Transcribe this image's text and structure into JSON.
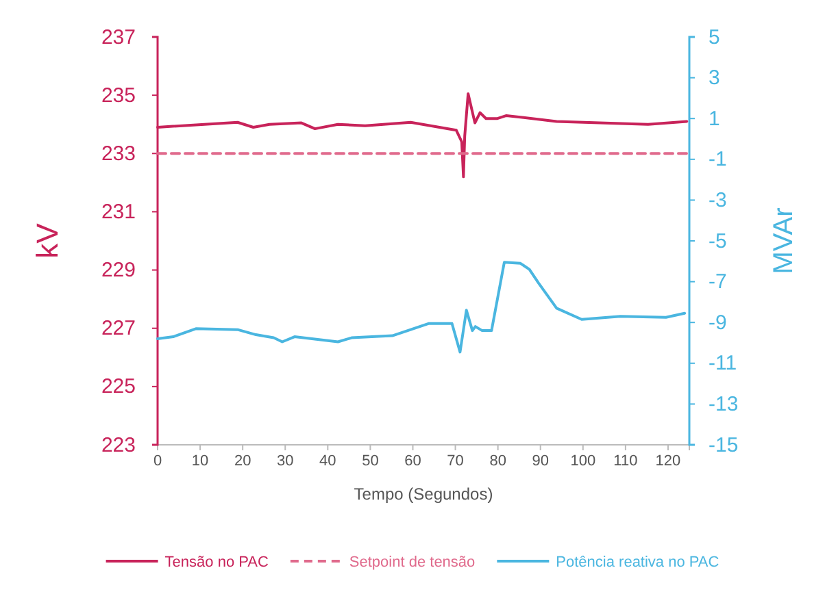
{
  "chart_data": {
    "type": "line",
    "xlabel": "Tempo (Segundos)",
    "ylabel": "kV",
    "y2label": "MVAr",
    "xlim": [
      0,
      125
    ],
    "xticks": [
      0,
      10,
      20,
      30,
      40,
      50,
      60,
      70,
      80,
      90,
      100,
      110,
      120
    ],
    "ylim": [
      223,
      237
    ],
    "yticks": [
      223,
      225,
      227,
      229,
      231,
      233,
      235,
      237
    ],
    "y2lim": [
      -15,
      5
    ],
    "y2ticks": [
      -15,
      -13,
      -11,
      -9,
      -7,
      -5,
      -3,
      -1,
      1,
      3,
      5
    ],
    "grid": false,
    "legend": "bottom",
    "marker": "none",
    "series": [
      {
        "name": "Tensão no PAC",
        "color": "#c8235a",
        "line_style": "solid",
        "x": [
          0,
          18.8,
          22.5,
          26.3,
          33.8,
          37,
          42.4,
          48.8,
          59.5,
          70.2,
          71.5,
          71.9,
          72.2,
          73,
          74.6,
          75.8,
          77.2,
          79.9,
          82,
          93.8,
          115.3,
          124.4
        ],
        "values": [
          233.9,
          234.07,
          233.9,
          234,
          234.05,
          233.85,
          234,
          233.95,
          234.07,
          233.8,
          233.4,
          232.2,
          233.6,
          235.05,
          234.05,
          234.4,
          234.2,
          234.2,
          234.3,
          234.1,
          234,
          234.1
        ]
      },
      {
        "name": "Setpoint de tensão",
        "color": "#e06a8c",
        "line_style": "dashed",
        "x": [
          0,
          125
        ],
        "values": [
          233,
          233
        ]
      },
      {
        "name": "Potência reativa no PAC",
        "color": "#4ab6e0",
        "line_style": "solid",
        "axis": "y2",
        "x": [
          0,
          3.7,
          9.1,
          18.8,
          23.1,
          27.3,
          29.3,
          32.2,
          42.4,
          45.6,
          55.2,
          63.8,
          69.2,
          71.1,
          72.6,
          74,
          74.7,
          76.3,
          78.5,
          81.5,
          85.3,
          87.4,
          89.5,
          93.8,
          99.7,
          108.8,
          119.5,
          123.9
        ],
        "values": [
          -9.8,
          -9.7,
          -9.3,
          -9.35,
          -9.6,
          -9.75,
          -9.95,
          -9.7,
          -9.95,
          -9.75,
          -9.65,
          -9.05,
          -9.05,
          -10.45,
          -8.4,
          -9.4,
          -9.2,
          -9.4,
          -9.4,
          -6.05,
          -6.1,
          -6.4,
          -7.05,
          -8.3,
          -8.85,
          -8.7,
          -8.75,
          -8.55
        ]
      }
    ]
  }
}
